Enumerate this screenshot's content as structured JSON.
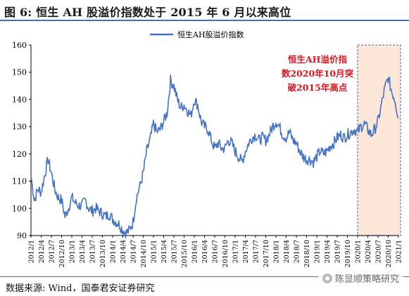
{
  "figure": {
    "title": "图 6:  恒生 AH 股溢价指数处于 2015 年 6 月以来高位",
    "source": "数据来源: Wind，国泰君安证券研究",
    "watermark": "陈显顺策略研究"
  },
  "colors": {
    "series": "#4472c4",
    "highlight_border": "#6a7fb8",
    "highlight_fill": "#fbe6d8",
    "annotation_text": "#e0141e",
    "title_rule": "#4a6fa5"
  },
  "chart_data": {
    "type": "line",
    "series": [
      {
        "name": "恒生AH股溢价指数",
        "points": [
          [
            "2012-01",
            112
          ],
          [
            "2012-02",
            103
          ],
          [
            "2012-03",
            107
          ],
          [
            "2012-04",
            106
          ],
          [
            "2012-05",
            112
          ],
          [
            "2012-06",
            118
          ],
          [
            "2012-07",
            113
          ],
          [
            "2012-08",
            107
          ],
          [
            "2012-09",
            104
          ],
          [
            "2012-10",
            103
          ],
          [
            "2012-11",
            97
          ],
          [
            "2012-12",
            100
          ],
          [
            "2013-01",
            104
          ],
          [
            "2013-02",
            102
          ],
          [
            "2013-03",
            101
          ],
          [
            "2013-04",
            101
          ],
          [
            "2013-05",
            103
          ],
          [
            "2013-06",
            100
          ],
          [
            "2013-07",
            99
          ],
          [
            "2013-08",
            100
          ],
          [
            "2013-09",
            99
          ],
          [
            "2013-10",
            98
          ],
          [
            "2013-11",
            97
          ],
          [
            "2013-12",
            98
          ],
          [
            "2014-01",
            96
          ],
          [
            "2014-02",
            95
          ],
          [
            "2014-03",
            94
          ],
          [
            "2014-04",
            92
          ],
          [
            "2014-05",
            91
          ],
          [
            "2014-06",
            92
          ],
          [
            "2014-07",
            95
          ],
          [
            "2014-08",
            104
          ],
          [
            "2014-09",
            108
          ],
          [
            "2014-10",
            113
          ],
          [
            "2014-11",
            121
          ],
          [
            "2014-12",
            125
          ],
          [
            "2015-01",
            131
          ],
          [
            "2015-02",
            128
          ],
          [
            "2015-03",
            129
          ],
          [
            "2015-04",
            132
          ],
          [
            "2015-05",
            135
          ],
          [
            "2015-06",
            147
          ],
          [
            "2015-07",
            145
          ],
          [
            "2015-08",
            140
          ],
          [
            "2015-09",
            137
          ],
          [
            "2015-10",
            138
          ],
          [
            "2015-11",
            136
          ],
          [
            "2015-12",
            134
          ],
          [
            "2016-01",
            140
          ],
          [
            "2016-02",
            138
          ],
          [
            "2016-03",
            132
          ],
          [
            "2016-04",
            130
          ],
          [
            "2016-05",
            129
          ],
          [
            "2016-06",
            125
          ],
          [
            "2016-07",
            122
          ],
          [
            "2016-08",
            124
          ],
          [
            "2016-09",
            122
          ],
          [
            "2016-10",
            122
          ],
          [
            "2016-11",
            125
          ],
          [
            "2016-12",
            124
          ],
          [
            "2017-01",
            121
          ],
          [
            "2017-02",
            119
          ],
          [
            "2017-03",
            117
          ],
          [
            "2017-04",
            121
          ],
          [
            "2017-05",
            124
          ],
          [
            "2017-06",
            126
          ],
          [
            "2017-07",
            127
          ],
          [
            "2017-08",
            125
          ],
          [
            "2017-09",
            126
          ],
          [
            "2017-10",
            125
          ],
          [
            "2017-11",
            127
          ],
          [
            "2017-12",
            130
          ],
          [
            "2018-01",
            132
          ],
          [
            "2018-02",
            130
          ],
          [
            "2018-03",
            127
          ],
          [
            "2018-04",
            126
          ],
          [
            "2018-05",
            128
          ],
          [
            "2018-06",
            125
          ],
          [
            "2018-07",
            124
          ],
          [
            "2018-08",
            121
          ],
          [
            "2018-09",
            119
          ],
          [
            "2018-10",
            118
          ],
          [
            "2018-11",
            118
          ],
          [
            "2018-12",
            117
          ],
          [
            "2019-01",
            119
          ],
          [
            "2019-02",
            121
          ],
          [
            "2019-03",
            120
          ],
          [
            "2019-04",
            121
          ],
          [
            "2019-05",
            123
          ],
          [
            "2019-06",
            124
          ],
          [
            "2019-07",
            126
          ],
          [
            "2019-08",
            127
          ],
          [
            "2019-09",
            126
          ],
          [
            "2019-10",
            127
          ],
          [
            "2019-11",
            128
          ],
          [
            "2019-12",
            129
          ],
          [
            "2020-01",
            128
          ],
          [
            "2020-02",
            130
          ],
          [
            "2020-03",
            131
          ],
          [
            "2020-04",
            129
          ],
          [
            "2020-05",
            127
          ],
          [
            "2020-06",
            129
          ],
          [
            "2020-07",
            132
          ],
          [
            "2020-08",
            138
          ],
          [
            "2020-09",
            144
          ],
          [
            "2020-10",
            148
          ],
          [
            "2020-11",
            143
          ],
          [
            "2020-12",
            140
          ],
          [
            "2021-01",
            133
          ]
        ]
      }
    ],
    "x_tick_labels": [
      "2012/1",
      "2012/4",
      "2012/7",
      "2012/10",
      "2013/1",
      "2013/4",
      "2013/7",
      "2013/10",
      "2014/1",
      "2014/4",
      "2014/7",
      "2014/10",
      "2015/1",
      "2015/4",
      "2015/7",
      "2015/10",
      "2016/1",
      "2016/4",
      "2016/7",
      "2016/10",
      "2017/1",
      "2017/4",
      "2017/7",
      "2017/10",
      "2018/1",
      "2018/4",
      "2018/7",
      "2018/10",
      "2019/1",
      "2019/4",
      "2019/7",
      "2019/10",
      "2020/1",
      "2020/4",
      "2020/7",
      "2020/10",
      "2021/1"
    ],
    "y_ticks": [
      90,
      100,
      110,
      120,
      130,
      140,
      150,
      160
    ],
    "y_tick_labels": [
      "90",
      "100",
      "110",
      "120",
      "130",
      "140",
      "150",
      "160"
    ],
    "ylim": [
      90,
      160
    ],
    "xlim": [
      "2012-01",
      "2021-01"
    ],
    "grid": false,
    "legend": {
      "position": "top-center",
      "label": "恒生AH股溢价指数"
    },
    "highlight_region": {
      "from": "2020-01",
      "to": "2021-01"
    },
    "annotation_lines": [
      "恒生AH溢价指",
      "数2020年10月突",
      "破2015年高点"
    ]
  }
}
